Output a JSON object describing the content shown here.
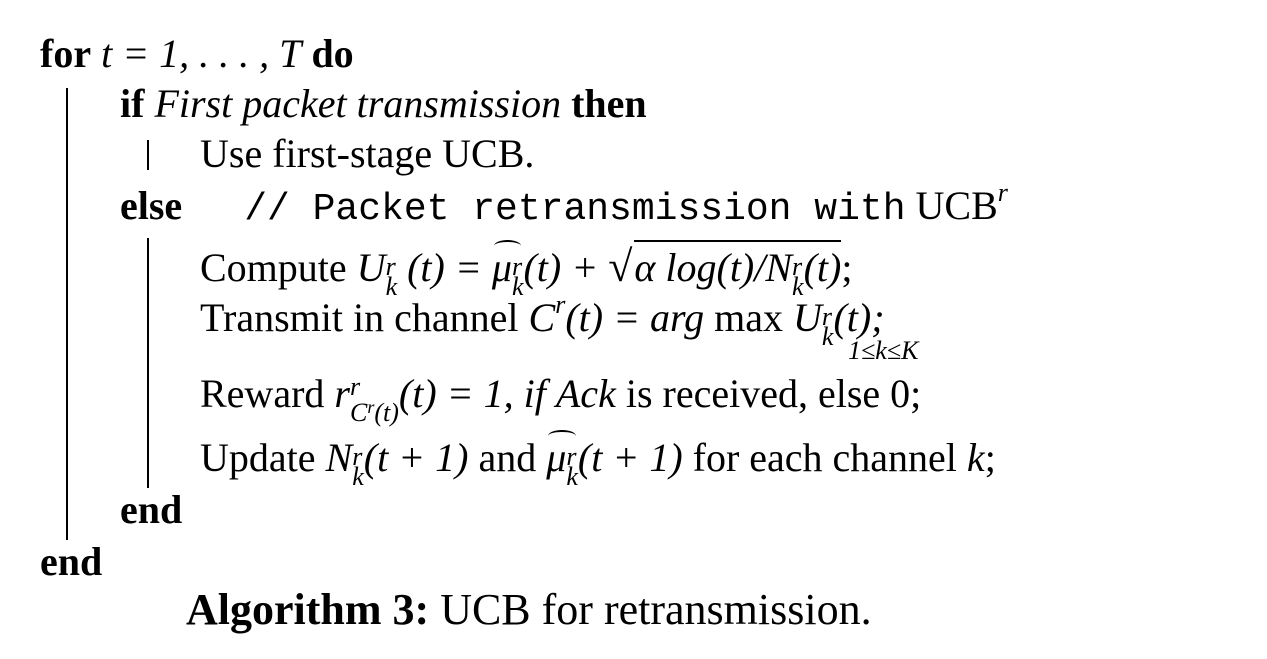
{
  "algorithm": {
    "line_for": {
      "kw_for": "for",
      "math": "t = 1, . . . , T",
      "kw_do": "do"
    },
    "line_if": {
      "kw_if": "if",
      "condition": "First packet transmission",
      "kw_then": "then"
    },
    "line_first_stage": "Use first-stage UCB.",
    "line_else": {
      "kw_else": "else",
      "comment": "// Packet retransmission with",
      "comment_tail": "UCB",
      "comment_sup": "r"
    },
    "line_compute": {
      "text": "Compute",
      "math_lhs": "U",
      "math_sup": "r",
      "math_sub": "k",
      "math_mid": "(t) =",
      "mu": "μ",
      "mu_sup": "r",
      "mu_sub": "k",
      "mu_arg": "(t) +",
      "sqrt_body": "α log(t)/N",
      "sqrt_sup": "r",
      "sqrt_sub": "k",
      "sqrt_tail": "(t)",
      "end": ";"
    },
    "line_transmit": {
      "text": "Transmit in channel",
      "math_c": "C",
      "math_c_sup": "r",
      "math_mid": "(t) = arg",
      "max_op": "max",
      "max_limits": "1≤k≤K",
      "u": "U",
      "u_sup": "r",
      "u_sub": "k",
      "tail": "(t);"
    },
    "line_reward": {
      "text": "Reward",
      "r": "r",
      "r_sup": "r",
      "r_sub": "C",
      "r_sub_sup": "r",
      "r_sub_tail": "(t)",
      "mid": "(t) = 1, if",
      "ack": "Ack",
      "tail": "is received, else 0;"
    },
    "line_update": {
      "text": "Update",
      "n": "N",
      "n_sup": "r",
      "n_sub": "k",
      "n_arg": "(t + 1)",
      "and": "and",
      "mu": "μ",
      "mu_sup": "r",
      "mu_sub": "k",
      "mu_arg": "(t + 1)",
      "tail_text": "for each channel",
      "tail_k": "k",
      "tail_end": ";"
    },
    "end_inner": "end",
    "end_outer": "end",
    "caption_label": "Algorithm 3:",
    "caption_text": "UCB for retransmission."
  }
}
